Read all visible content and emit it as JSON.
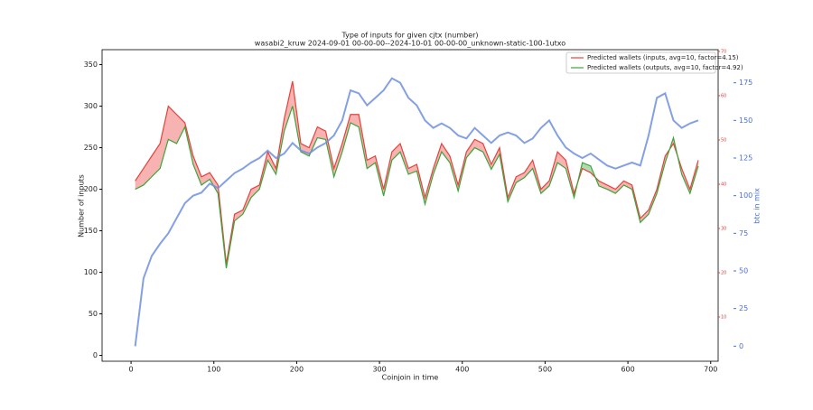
{
  "chart_data": {
    "type": "line",
    "title": "Type of inputs for given cjtx (number)",
    "subtitle": "wasabi2_kruw 2024-09-01 00-00-00--2024-10-01 00-00-00_unknown-static-100-1utxo",
    "x_label": "Coinjoin in time",
    "y_label": "Number of inputs",
    "y2_label": "btc in mix",
    "x": [
      5,
      15,
      25,
      35,
      45,
      55,
      65,
      75,
      85,
      95,
      105,
      115,
      125,
      135,
      145,
      155,
      165,
      175,
      185,
      195,
      205,
      215,
      225,
      235,
      245,
      255,
      265,
      275,
      285,
      295,
      305,
      315,
      325,
      335,
      345,
      355,
      365,
      375,
      385,
      395,
      405,
      415,
      425,
      435,
      445,
      455,
      465,
      475,
      485,
      495,
      505,
      515,
      525,
      535,
      545,
      555,
      565,
      575,
      585,
      595,
      605,
      615,
      625,
      635,
      645,
      655,
      665,
      675,
      685
    ],
    "series": [
      {
        "name": "Predicted wallets (inputs, avg=10, factor=4.15)",
        "color": "#e8413c",
        "values": [
          210,
          225,
          240,
          255,
          300,
          290,
          280,
          240,
          215,
          220,
          205,
          110,
          170,
          175,
          200,
          205,
          245,
          225,
          285,
          330,
          255,
          250,
          275,
          270,
          225,
          255,
          290,
          290,
          235,
          240,
          200,
          245,
          255,
          225,
          230,
          190,
          225,
          255,
          240,
          205,
          245,
          260,
          255,
          230,
          250,
          190,
          215,
          220,
          235,
          200,
          210,
          245,
          235,
          195,
          225,
          220,
          210,
          205,
          200,
          210,
          205,
          165,
          175,
          200,
          240,
          255,
          225,
          200,
          235
        ]
      },
      {
        "name": "Predicted wallets (outputs, avg=10, factor=4.92)",
        "color": "#3aa63a",
        "values": [
          200,
          205,
          215,
          225,
          260,
          255,
          275,
          230,
          205,
          212,
          195,
          105,
          162,
          170,
          190,
          200,
          235,
          218,
          270,
          300,
          245,
          240,
          262,
          260,
          215,
          245,
          280,
          275,
          225,
          232,
          192,
          235,
          245,
          218,
          222,
          182,
          218,
          245,
          232,
          198,
          238,
          250,
          245,
          224,
          242,
          185,
          208,
          214,
          225,
          195,
          204,
          232,
          225,
          190,
          232,
          228,
          204,
          200,
          195,
          205,
          200,
          160,
          170,
          195,
          232,
          262,
          218,
          195,
          228
        ]
      },
      {
        "color": "#6f8fe0",
        "axis": "y2",
        "values": [
          0,
          45,
          60,
          68,
          75,
          85,
          95,
          100,
          102,
          108,
          105,
          110,
          115,
          118,
          122,
          125,
          130,
          125,
          128,
          135,
          130,
          128,
          132,
          135,
          140,
          150,
          170,
          168,
          160,
          165,
          170,
          178,
          175,
          165,
          160,
          150,
          145,
          148,
          145,
          140,
          138,
          145,
          140,
          135,
          140,
          142,
          140,
          135,
          138,
          145,
          150,
          140,
          132,
          128,
          125,
          128,
          124,
          120,
          118,
          120,
          122,
          120,
          140,
          165,
          168,
          150,
          145,
          148,
          150
        ]
      }
    ],
    "xlim": [
      -35,
      709
    ],
    "xticks": [
      0,
      100,
      200,
      300,
      400,
      500,
      600,
      700
    ],
    "ylim": [
      -7,
      368
    ],
    "yticks": [
      0,
      50,
      100,
      150,
      200,
      250,
      300,
      350
    ],
    "y2lim": [
      -10,
      197
    ],
    "y2ticks": [
      0,
      25,
      50,
      75,
      100,
      125,
      150,
      175
    ],
    "y3lim": [
      0,
      70.4
    ],
    "y3ticks": [
      10,
      20,
      30,
      40,
      50,
      60,
      70
    ],
    "y3color": "#e8413c",
    "legend": "upper right"
  }
}
